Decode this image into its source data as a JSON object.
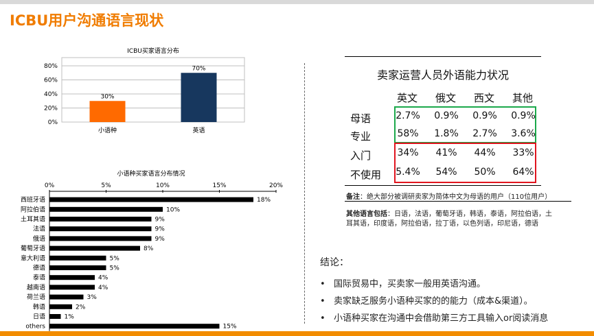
{
  "page": {
    "title": "ICBU用户沟通语言现状"
  },
  "chart_data": [
    {
      "type": "bar",
      "title": "ICBU买家语言分布",
      "categories": [
        "小语种",
        "英语"
      ],
      "values": [
        30,
        70
      ],
      "data_labels": [
        "30%",
        "70%"
      ],
      "colors": [
        "#ff6a00",
        "#17375e"
      ],
      "ylim": [
        0,
        80
      ],
      "yticks": [
        "0%",
        "20%",
        "40%",
        "60%",
        "80%"
      ],
      "grid": true
    },
    {
      "type": "bar",
      "orientation": "horizontal",
      "title": "小语种买家语言分布情况",
      "categories": [
        "西班牙语",
        "阿拉伯语",
        "土耳其语",
        "法语",
        "俄语",
        "葡萄牙语",
        "意大利语",
        "德语",
        "泰语",
        "越南语",
        "荷兰语",
        "韩语",
        "日语",
        "others"
      ],
      "values": [
        18,
        10,
        9,
        9,
        9,
        8,
        5,
        5,
        4,
        4,
        3,
        2,
        1,
        15
      ],
      "data_labels": [
        "18%",
        "10%",
        "9%",
        "9%",
        "9%",
        "8%",
        "5%",
        "5%",
        "4%",
        "4%",
        "3%",
        "2%",
        "1%",
        "15%"
      ],
      "color": "#000000",
      "xlim": [
        0,
        20
      ],
      "xticks": [
        "0%",
        "5%",
        "10%",
        "15%",
        "20%"
      ],
      "grid": false
    }
  ],
  "table": {
    "title": "卖家运营人员外语能力状况",
    "headers": [
      "英文",
      "俄文",
      "西文",
      "其他"
    ],
    "rows": [
      {
        "label": "母语",
        "cells": [
          "2.7%",
          "0.9%",
          "0.9%",
          "0.9%"
        ]
      },
      {
        "label": "专业",
        "cells": [
          "58%",
          "1.8%",
          "2.7%",
          "3.6%"
        ]
      },
      {
        "label": "入门",
        "cells": [
          "34%",
          "41%",
          "44%",
          "33%"
        ]
      },
      {
        "label": "不使用",
        "cells": [
          "5.4%",
          "54%",
          "50%",
          "64%"
        ]
      }
    ],
    "highlight_colors": {
      "green": "#1aa84a",
      "red": "#e0141e"
    }
  },
  "notes": {
    "note1_label": "备注",
    "note1_text": "：绝大部分被调研卖家为简体中文为母语的用户（110位用户）",
    "note2_label": "其他语言包括",
    "note2_line1": "：日语，法语，葡萄牙语，韩语，泰语，阿拉伯语，土",
    "note2_line2": "耳其语，印度语，阿拉伯语，拉丁语，以色列语，印尼语，德语"
  },
  "conclusion": {
    "heading": "结论：",
    "bullets": [
      "国际贸易中，买卖家一般用英语沟通。",
      "卖家缺乏服务小语种买家的的能力（成本&渠道）。",
      "小语种买家在沟通中会借助第三方工具输入or阅读消息"
    ],
    "bullet_symbol": "•"
  },
  "colors": {
    "accent": "#f07c00",
    "bottom_bar": "#f28c00"
  }
}
